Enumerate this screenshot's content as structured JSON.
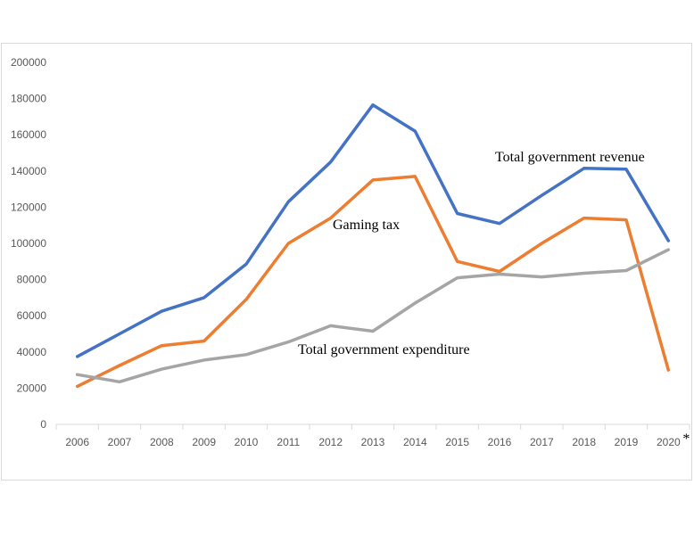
{
  "chart_data": {
    "type": "line",
    "categories": [
      "2006",
      "2007",
      "2008",
      "2009",
      "2010",
      "2011",
      "2012",
      "2013",
      "2014",
      "2015",
      "2016",
      "2017",
      "2018",
      "2019",
      "2020"
    ],
    "last_category_suffix": "*",
    "ylim": [
      0,
      200000
    ],
    "yticks": [
      "0",
      "20000",
      "40000",
      "60000",
      "80000",
      "100000",
      "120000",
      "140000",
      "160000",
      "180000",
      "200000"
    ],
    "grid": false,
    "series": [
      {
        "name": "Total government revenue",
        "color": "#4472c4",
        "values": [
          37500,
          50000,
          62500,
          70000,
          88500,
          123000,
          145000,
          176500,
          162000,
          116500,
          111000,
          126500,
          141500,
          141000,
          101500
        ]
      },
      {
        "name": "Gaming tax",
        "color": "#ed7d31",
        "values": [
          21000,
          32500,
          43500,
          46000,
          69000,
          100000,
          114000,
          135000,
          137000,
          90000,
          84500,
          100000,
          114000,
          113000,
          30000
        ]
      },
      {
        "name": "Total government expenditure",
        "color": "#a5a5a5",
        "values": [
          27500,
          23500,
          30500,
          35500,
          38500,
          45500,
          54500,
          51500,
          67000,
          81000,
          83000,
          81500,
          83500,
          85000,
          96500
        ]
      }
    ],
    "annotations": [
      "Total government revenue",
      "Gaming tax",
      "Total government expenditure"
    ]
  }
}
